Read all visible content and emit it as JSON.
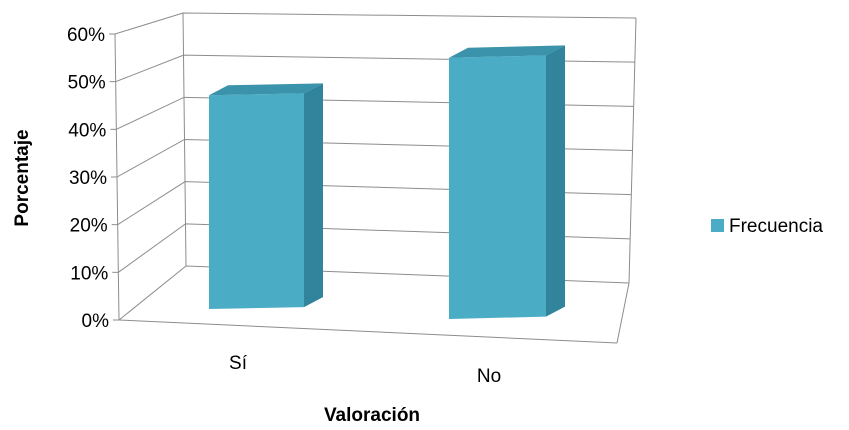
{
  "chart_data": {
    "type": "bar",
    "categories": [
      "Sí",
      "No"
    ],
    "series": [
      {
        "name": "Frecuencia",
        "values": [
          45,
          55
        ]
      }
    ],
    "xlabel": "Valoración",
    "ylabel": "Porcentaje",
    "ylim": [
      0,
      60
    ],
    "yticks": [
      "0%",
      "10%",
      "20%",
      "30%",
      "40%",
      "50%",
      "60%"
    ],
    "grid": true,
    "legend_position": "right",
    "colors": {
      "bar_front": "#4bacc6",
      "bar_side": "#31849b",
      "bar_top": "#3a93ab"
    }
  }
}
